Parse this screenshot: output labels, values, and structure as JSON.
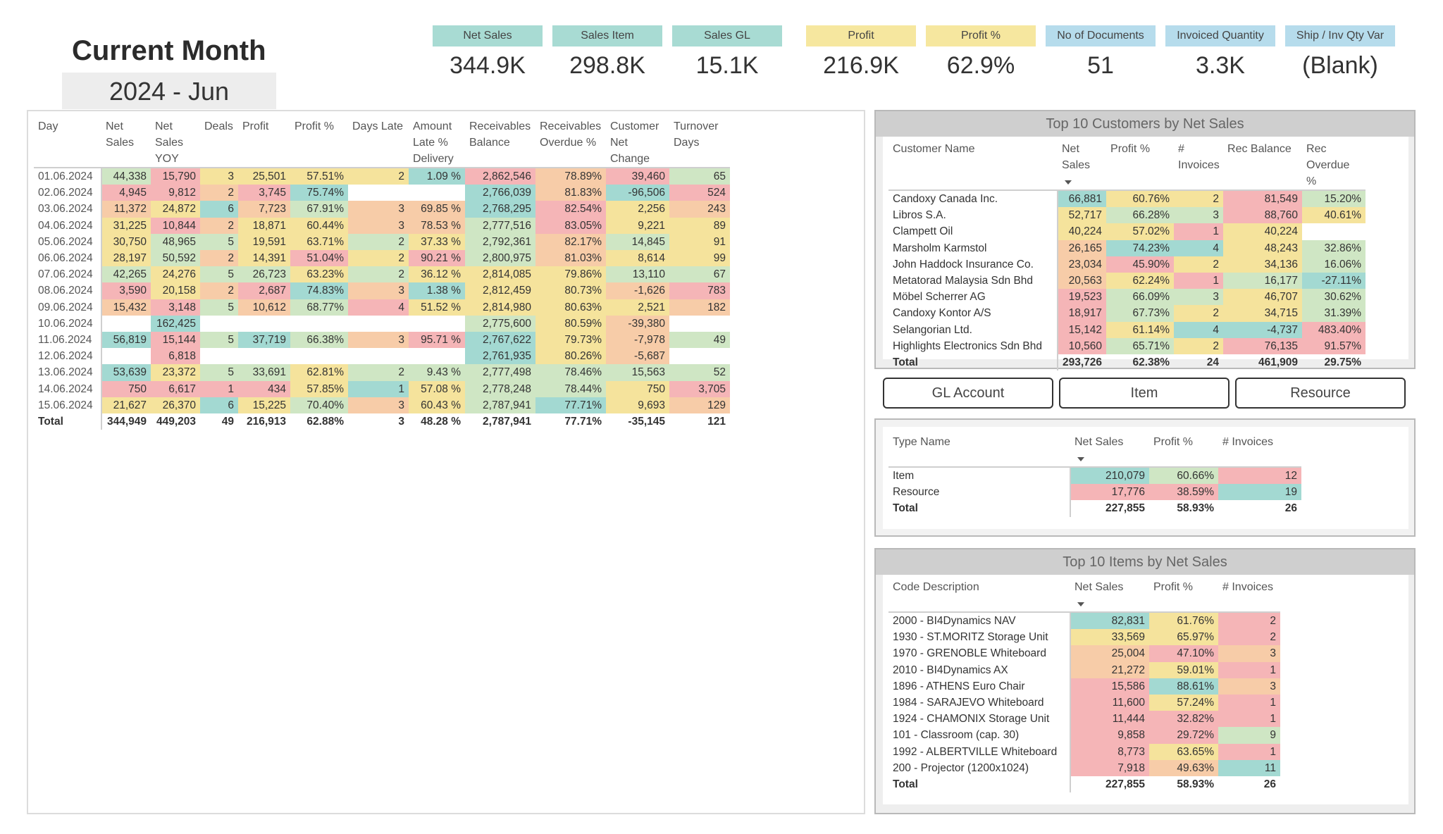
{
  "title": "Current Month",
  "period": "2024 - Jun",
  "kpis": [
    {
      "label": "Net Sales",
      "value": "344.9K",
      "color": "#a8dbd3"
    },
    {
      "label": "Sales Item",
      "value": "298.8K",
      "color": "#a8dbd3"
    },
    {
      "label": "Sales GL",
      "value": "15.1K",
      "color": "#a8dbd3"
    },
    {
      "label": "Profit",
      "value": "216.9K",
      "color": "#f6e79f"
    },
    {
      "label": "Profit %",
      "value": "62.9%",
      "color": "#f6e79f"
    },
    {
      "label": "No of Documents",
      "value": "51",
      "color": "#b6dcec"
    },
    {
      "label": "Invoiced Quantity",
      "value": "3.3K",
      "color": "#b6dcec"
    },
    {
      "label": "Ship / Inv Qty Var",
      "value": "(Blank)",
      "color": "#b6dcec"
    }
  ],
  "daily": {
    "headers": [
      "Day",
      "Net Sales",
      "Net Sales YOY",
      "Deals",
      "Profit",
      "Profit %",
      "Days Late",
      "Amount Late % Delivery",
      "Receivables Balance",
      "Receivables Overdue %",
      "Customer Net Change",
      "Turnover Days"
    ],
    "rows": [
      {
        "c": [
          "01.06.2024",
          "44,338",
          "15,790",
          "3",
          "25,501",
          "57.51%",
          "2",
          "1.09 %",
          "2,862,546",
          "78.89%",
          "39,460",
          "65"
        ],
        "k": [
          "w",
          "g",
          "r",
          "y",
          "y",
          "y",
          "y",
          "t",
          "r",
          "o",
          "r",
          "g"
        ]
      },
      {
        "c": [
          "02.06.2024",
          "4,945",
          "9,812",
          "2",
          "3,745",
          "75.74%",
          "",
          "",
          "2,766,039",
          "81.83%",
          "-96,506",
          "524"
        ],
        "k": [
          "w",
          "r",
          "r",
          "o",
          "r",
          "t",
          "w",
          "w",
          "t",
          "o",
          "t",
          "r"
        ]
      },
      {
        "c": [
          "03.06.2024",
          "11,372",
          "24,872",
          "6",
          "7,723",
          "67.91%",
          "3",
          "69.85 %",
          "2,768,295",
          "82.54%",
          "2,256",
          "243"
        ],
        "k": [
          "w",
          "o",
          "y",
          "t",
          "o",
          "g",
          "o",
          "o",
          "t",
          "r",
          "y",
          "o"
        ]
      },
      {
        "c": [
          "04.06.2024",
          "31,225",
          "10,844",
          "2",
          "18,871",
          "60.44%",
          "3",
          "78.53 %",
          "2,777,516",
          "83.05%",
          "9,221",
          "89"
        ],
        "k": [
          "w",
          "y",
          "r",
          "o",
          "y",
          "y",
          "o",
          "o",
          "g",
          "r",
          "y",
          "y"
        ]
      },
      {
        "c": [
          "05.06.2024",
          "30,750",
          "48,965",
          "5",
          "19,591",
          "63.71%",
          "2",
          "37.33 %",
          "2,792,361",
          "82.17%",
          "14,845",
          "91"
        ],
        "k": [
          "w",
          "y",
          "g",
          "g",
          "y",
          "y",
          "g",
          "y",
          "g",
          "o",
          "g",
          "y"
        ]
      },
      {
        "c": [
          "06.06.2024",
          "28,197",
          "50,592",
          "2",
          "14,391",
          "51.04%",
          "2",
          "90.21 %",
          "2,800,975",
          "81.03%",
          "8,614",
          "99"
        ],
        "k": [
          "w",
          "y",
          "g",
          "o",
          "y",
          "r",
          "y",
          "r",
          "g",
          "o",
          "y",
          "y"
        ]
      },
      {
        "c": [
          "07.06.2024",
          "42,265",
          "24,276",
          "5",
          "26,723",
          "63.23%",
          "2",
          "36.12 %",
          "2,814,085",
          "79.86%",
          "13,110",
          "67"
        ],
        "k": [
          "w",
          "g",
          "y",
          "g",
          "g",
          "y",
          "g",
          "y",
          "y",
          "y",
          "g",
          "g"
        ]
      },
      {
        "c": [
          "08.06.2024",
          "3,590",
          "20,158",
          "2",
          "2,687",
          "74.83%",
          "3",
          "1.38 %",
          "2,812,459",
          "80.73%",
          "-1,626",
          "783"
        ],
        "k": [
          "w",
          "r",
          "y",
          "o",
          "r",
          "t",
          "o",
          "t",
          "y",
          "y",
          "o",
          "r"
        ]
      },
      {
        "c": [
          "09.06.2024",
          "15,432",
          "3,148",
          "5",
          "10,612",
          "68.77%",
          "4",
          "51.52 %",
          "2,814,980",
          "80.63%",
          "2,521",
          "182"
        ],
        "k": [
          "w",
          "o",
          "r",
          "g",
          "o",
          "g",
          "r",
          "y",
          "y",
          "y",
          "y",
          "o"
        ]
      },
      {
        "c": [
          "10.06.2024",
          "",
          "162,425",
          "",
          "",
          "",
          "",
          "",
          "2,775,600",
          "80.59%",
          "-39,380",
          ""
        ],
        "k": [
          "w",
          "w",
          "t",
          "w",
          "w",
          "w",
          "w",
          "w",
          "g",
          "y",
          "o",
          "w"
        ]
      },
      {
        "c": [
          "11.06.2024",
          "56,819",
          "15,144",
          "5",
          "37,719",
          "66.38%",
          "3",
          "95.71 %",
          "2,767,622",
          "79.73%",
          "-7,978",
          "49"
        ],
        "k": [
          "w",
          "t",
          "r",
          "g",
          "t",
          "g",
          "o",
          "r",
          "t",
          "y",
          "o",
          "g"
        ]
      },
      {
        "c": [
          "12.06.2024",
          "",
          "6,818",
          "",
          "",
          "",
          "",
          "",
          "2,761,935",
          "80.26%",
          "-5,687",
          ""
        ],
        "k": [
          "w",
          "w",
          "r",
          "w",
          "w",
          "w",
          "w",
          "w",
          "t",
          "y",
          "o",
          "w"
        ]
      },
      {
        "c": [
          "13.06.2024",
          "53,639",
          "23,372",
          "5",
          "33,691",
          "62.81%",
          "2",
          "9.43 %",
          "2,777,498",
          "78.46%",
          "15,563",
          "52"
        ],
        "k": [
          "w",
          "t",
          "y",
          "g",
          "g",
          "y",
          "g",
          "g",
          "g",
          "g",
          "g",
          "g"
        ]
      },
      {
        "c": [
          "14.06.2024",
          "750",
          "6,617",
          "1",
          "434",
          "57.85%",
          "1",
          "57.08 %",
          "2,778,248",
          "78.44%",
          "750",
          "3,705"
        ],
        "k": [
          "w",
          "r",
          "r",
          "r",
          "r",
          "y",
          "t",
          "y",
          "g",
          "g",
          "y",
          "r"
        ]
      },
      {
        "c": [
          "15.06.2024",
          "21,627",
          "26,370",
          "6",
          "15,225",
          "70.40%",
          "3",
          "60.43 %",
          "2,787,941",
          "77.71%",
          "9,693",
          "129"
        ],
        "k": [
          "w",
          "y",
          "y",
          "t",
          "y",
          "g",
          "o",
          "y",
          "g",
          "t",
          "y",
          "o"
        ]
      }
    ],
    "total": [
      "Total",
      "344,949",
      "449,203",
      "49",
      "216,913",
      "62.88%",
      "3",
      "48.28 %",
      "2,787,941",
      "77.71%",
      "-35,145",
      "121"
    ]
  },
  "customers": {
    "title": "Top 10 Customers by Net Sales",
    "headers": [
      "Customer Name",
      "Net Sales",
      "Profit %",
      "# Invoices",
      "Rec Balance",
      "Rec Overdue %"
    ],
    "rows": [
      {
        "c": [
          "Candoxy Canada Inc.",
          "66,881",
          "60.76%",
          "2",
          "81,549",
          "15.20%"
        ],
        "k": [
          "w",
          "t",
          "y",
          "y",
          "r",
          "g"
        ]
      },
      {
        "c": [
          "Libros S.A.",
          "52,717",
          "66.28%",
          "3",
          "88,760",
          "40.61%"
        ],
        "k": [
          "w",
          "y",
          "g",
          "g",
          "r",
          "y"
        ]
      },
      {
        "c": [
          "Clampett Oil",
          "40,224",
          "57.02%",
          "1",
          "40,224",
          ""
        ],
        "k": [
          "w",
          "y",
          "y",
          "r",
          "y",
          "w"
        ]
      },
      {
        "c": [
          "Marsholm Karmstol",
          "26,165",
          "74.23%",
          "4",
          "48,243",
          "32.86%"
        ],
        "k": [
          "w",
          "o",
          "t",
          "t",
          "y",
          "g"
        ]
      },
      {
        "c": [
          "John Haddock Insurance Co.",
          "23,034",
          "45.90%",
          "2",
          "34,136",
          "16.06%"
        ],
        "k": [
          "w",
          "o",
          "r",
          "y",
          "y",
          "g"
        ]
      },
      {
        "c": [
          "Metatorad Malaysia Sdn Bhd",
          "20,563",
          "62.24%",
          "1",
          "16,177",
          "-27.11%"
        ],
        "k": [
          "w",
          "o",
          "y",
          "r",
          "g",
          "t"
        ]
      },
      {
        "c": [
          "Möbel Scherrer AG",
          "19,523",
          "66.09%",
          "3",
          "46,707",
          "30.62%"
        ],
        "k": [
          "w",
          "r",
          "g",
          "g",
          "y",
          "g"
        ]
      },
      {
        "c": [
          "Candoxy Kontor A/S",
          "18,917",
          "67.73%",
          "2",
          "34,715",
          "31.39%"
        ],
        "k": [
          "w",
          "r",
          "g",
          "y",
          "y",
          "g"
        ]
      },
      {
        "c": [
          "Selangorian Ltd.",
          "15,142",
          "61.14%",
          "4",
          "-4,737",
          "483.40%"
        ],
        "k": [
          "w",
          "r",
          "y",
          "t",
          "t",
          "r"
        ]
      },
      {
        "c": [
          "Highlights Electronics Sdn Bhd",
          "10,560",
          "65.71%",
          "2",
          "76,135",
          "91.57%"
        ],
        "k": [
          "w",
          "r",
          "g",
          "y",
          "r",
          "r"
        ]
      }
    ],
    "total": [
      "Total",
      "293,726",
      "62.38%",
      "24",
      "461,909",
      "29.75%"
    ]
  },
  "buttons": {
    "gl": "GL Account",
    "item": "Item",
    "resource": "Resource"
  },
  "types": {
    "headers": [
      "Type Name",
      "Net Sales",
      "Profit %",
      "# Invoices"
    ],
    "rows": [
      {
        "c": [
          "Item",
          "210,079",
          "60.66%",
          "12"
        ],
        "k": [
          "w",
          "t",
          "g",
          "r"
        ]
      },
      {
        "c": [
          "Resource",
          "17,776",
          "38.59%",
          "19"
        ],
        "k": [
          "w",
          "r",
          "r",
          "t"
        ]
      }
    ],
    "total": [
      "Total",
      "227,855",
      "58.93%",
      "26"
    ]
  },
  "items": {
    "title": "Top 10 Items by Net Sales",
    "headers": [
      "Code Description",
      "Net Sales",
      "Profit %",
      "# Invoices"
    ],
    "rows": [
      {
        "c": [
          "2000 - BI4Dynamics NAV",
          "82,831",
          "61.76%",
          "2"
        ],
        "k": [
          "w",
          "t",
          "y",
          "r"
        ]
      },
      {
        "c": [
          "1930 - ST.MORITZ Storage Unit",
          "33,569",
          "65.97%",
          "2"
        ],
        "k": [
          "w",
          "y",
          "y",
          "r"
        ]
      },
      {
        "c": [
          "1970 - GRENOBLE Whiteboard",
          "25,004",
          "47.10%",
          "3"
        ],
        "k": [
          "w",
          "o",
          "r",
          "o"
        ]
      },
      {
        "c": [
          "2010 - BI4Dynamics AX",
          "21,272",
          "59.01%",
          "1"
        ],
        "k": [
          "w",
          "o",
          "y",
          "r"
        ]
      },
      {
        "c": [
          "1896 - ATHENS Euro Chair",
          "15,586",
          "88.61%",
          "3"
        ],
        "k": [
          "w",
          "r",
          "t",
          "o"
        ]
      },
      {
        "c": [
          "1984 - SARAJEVO Whiteboard",
          "11,600",
          "57.24%",
          "1"
        ],
        "k": [
          "w",
          "r",
          "y",
          "r"
        ]
      },
      {
        "c": [
          "1924 - CHAMONIX Storage Unit",
          "11,444",
          "32.82%",
          "1"
        ],
        "k": [
          "w",
          "r",
          "r",
          "r"
        ]
      },
      {
        "c": [
          "101 - Classroom (cap. 30)",
          "9,858",
          "29.72%",
          "9"
        ],
        "k": [
          "w",
          "r",
          "r",
          "g"
        ]
      },
      {
        "c": [
          "1992 - ALBERTVILLE Whiteboard",
          "8,773",
          "63.65%",
          "1"
        ],
        "k": [
          "w",
          "r",
          "y",
          "r"
        ]
      },
      {
        "c": [
          "200 - Projector (1200x1024)",
          "7,918",
          "49.63%",
          "11"
        ],
        "k": [
          "w",
          "r",
          "o",
          "t"
        ]
      }
    ],
    "total": [
      "Total",
      "227,855",
      "58.93%",
      "26"
    ]
  }
}
